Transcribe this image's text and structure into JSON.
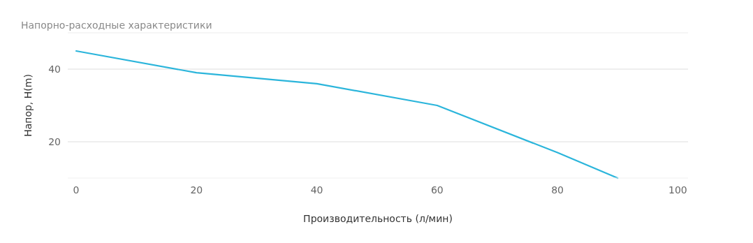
{
  "chart_data": {
    "type": "line",
    "title": "Напорно-расходные характеристики",
    "xlabel": "Производительность (л/мин)",
    "ylabel": "Напор, H(m)",
    "x": [
      0,
      20,
      40,
      60,
      80,
      90
    ],
    "series": [
      {
        "color": "#2bb5db",
        "values": [
          45,
          39,
          36,
          30,
          17,
          10
        ]
      }
    ],
    "xlim": [
      -1.4,
      101.7
    ],
    "xticks": [
      0,
      20,
      40,
      60,
      80,
      100
    ],
    "ylim": [
      10,
      50
    ],
    "yticks": [
      20,
      40
    ],
    "grid": "y",
    "marker": "none",
    "line_style": "solid"
  }
}
